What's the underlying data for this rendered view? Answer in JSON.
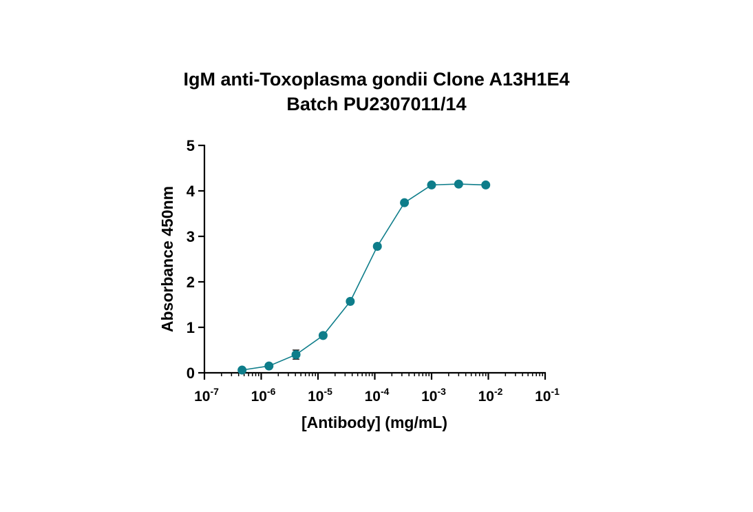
{
  "chart_data": {
    "type": "line",
    "title": "IgM anti-Toxoplasma gondii Clone A13H1E4",
    "subtitle": "Batch PU2307011/14",
    "xlabel": "[Antibody] (mg/mL)",
    "ylabel": "Absorbance 450nm",
    "xscale": "log",
    "xlim": [
      1e-07,
      0.1
    ],
    "ylim": [
      0,
      5
    ],
    "x_ticks": [
      {
        "value": 1e-07,
        "base": "10",
        "exp": "-7"
      },
      {
        "value": 1e-06,
        "base": "10",
        "exp": "-6"
      },
      {
        "value": 1e-05,
        "base": "10",
        "exp": "-5"
      },
      {
        "value": 0.0001,
        "base": "10",
        "exp": "-4"
      },
      {
        "value": 0.001,
        "base": "10",
        "exp": "-3"
      },
      {
        "value": 0.01,
        "base": "10",
        "exp": "-2"
      },
      {
        "value": 0.1,
        "base": "10",
        "exp": "-1"
      }
    ],
    "y_ticks": [
      "0",
      "1",
      "2",
      "3",
      "4",
      "5"
    ],
    "grid": false,
    "legend": "none",
    "series": [
      {
        "color": "#0e7d8a",
        "x": [
          4.6e-07,
          1.37e-06,
          4.1e-06,
          1.23e-05,
          3.7e-05,
          0.000111,
          0.000333,
          0.001,
          0.003,
          0.009
        ],
        "y": [
          0.06,
          0.15,
          0.4,
          0.82,
          1.57,
          2.78,
          3.74,
          4.13,
          4.15,
          4.13
        ],
        "error": [
          0.02,
          0.03,
          0.1,
          0.04,
          0.03,
          0.04,
          0.04,
          0.03,
          0.03,
          0.03
        ]
      }
    ]
  }
}
